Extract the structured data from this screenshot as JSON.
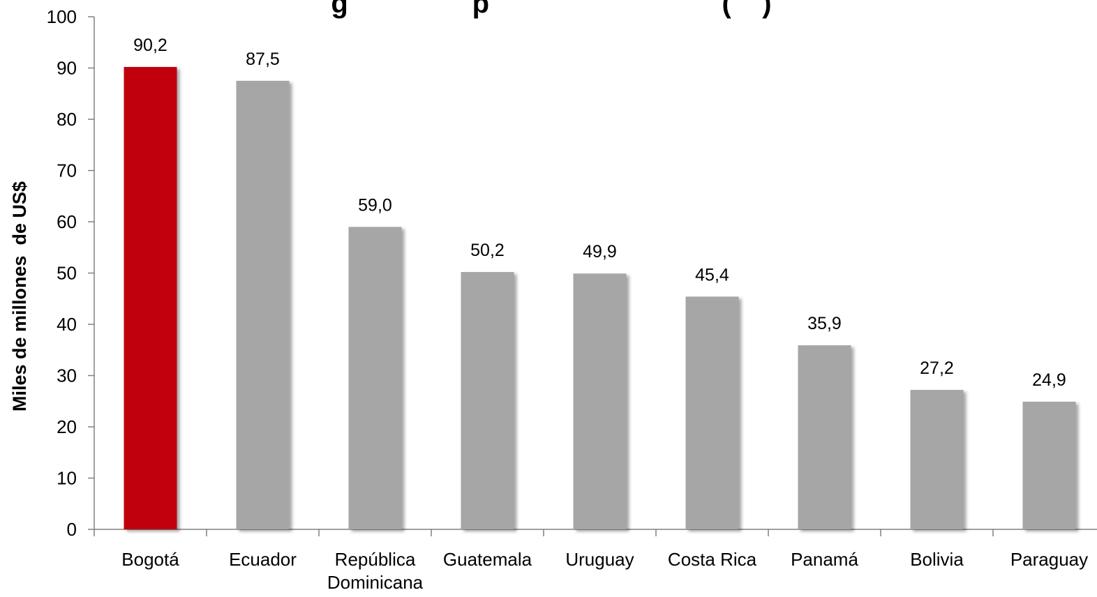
{
  "chart_data": {
    "type": "bar",
    "title": "g                p                              (    )",
    "ylabel": "Miles de millones  de US$",
    "xlabel": "",
    "ylim": [
      0,
      100
    ],
    "yticks": [
      0,
      10,
      20,
      30,
      40,
      50,
      60,
      70,
      80,
      90,
      100
    ],
    "grid": false,
    "legend": "none",
    "categories": [
      [
        "Bogotá"
      ],
      [
        "Ecuador"
      ],
      [
        "República",
        "Dominicana"
      ],
      [
        "Guatemala"
      ],
      [
        "Uruguay"
      ],
      [
        "Costa Rica"
      ],
      [
        "Panamá"
      ],
      [
        "Bolivia"
      ],
      [
        "Paraguay"
      ]
    ],
    "values": [
      90.2,
      87.5,
      59.0,
      50.2,
      49.9,
      45.4,
      35.9,
      27.2,
      24.9
    ],
    "value_labels": [
      "90,2",
      "87,5",
      "59,0",
      "50,2",
      "49,9",
      "45,4",
      "35,9",
      "27,2",
      "24,9"
    ],
    "colors": {
      "highlight": "#c0000b",
      "default": "#a6a6a6",
      "axis": "#808080"
    },
    "highlight_index": 0
  }
}
